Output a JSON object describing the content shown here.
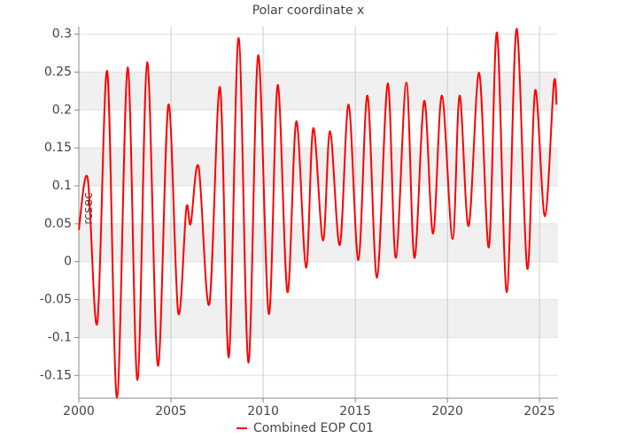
{
  "chart_data": {
    "type": "line",
    "title": "Polar coordinate x",
    "y_label": "arcsec",
    "x": [
      2000.0,
      2000.48,
      2001.0,
      2001.54,
      2002.07,
      2002.65,
      2003.18,
      2003.71,
      2004.29,
      2004.86,
      2005.39,
      2005.83,
      2006.07,
      2006.5,
      2007.08,
      2007.66,
      2008.14,
      2008.67,
      2009.2,
      2009.73,
      2010.31,
      2010.79,
      2011.32,
      2011.8,
      2012.33,
      2012.72,
      2013.25,
      2013.63,
      2014.16,
      2014.64,
      2015.17,
      2015.66,
      2016.18,
      2016.76,
      2017.2,
      2017.77,
      2018.21,
      2018.74,
      2019.22,
      2019.7,
      2020.28,
      2020.66,
      2021.15,
      2021.72,
      2022.25,
      2022.69,
      2023.22,
      2023.75,
      2024.33,
      2024.76,
      2025.29,
      2025.77,
      2025.92
    ],
    "series": [
      {
        "name": "Combined EOP C01",
        "color": "#ff0000",
        "values": [
          0.042,
          0.11,
          -0.081,
          0.251,
          -0.179,
          0.256,
          -0.156,
          0.263,
          -0.137,
          0.207,
          -0.067,
          0.07,
          0.05,
          0.125,
          -0.056,
          0.23,
          -0.126,
          0.295,
          -0.133,
          0.272,
          -0.069,
          0.233,
          -0.04,
          0.185,
          -0.008,
          0.176,
          0.028,
          0.172,
          0.022,
          0.207,
          0.002,
          0.219,
          -0.021,
          0.235,
          0.005,
          0.236,
          0.005,
          0.212,
          0.037,
          0.219,
          0.03,
          0.219,
          0.047,
          0.249,
          0.019,
          0.302,
          -0.04,
          0.307,
          -0.009,
          0.226,
          0.06,
          0.234,
          0.207
        ]
      }
    ],
    "xlim": [
      2000,
      2026
    ],
    "ylim": [
      -0.18,
      0.31
    ],
    "xticks": [
      2000,
      2005,
      2010,
      2015,
      2020,
      2025
    ],
    "yticks": [
      -0.15,
      -0.1,
      -0.05,
      0,
      0.05,
      0.1,
      0.15,
      0.2,
      0.25,
      0.3
    ],
    "grid": true
  }
}
